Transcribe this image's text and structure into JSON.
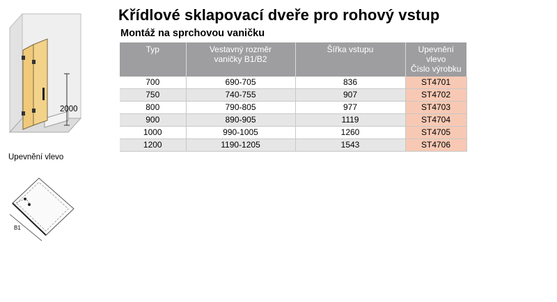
{
  "title": "Křídlové sklapovací dveře pro rohový vstup",
  "subtitle": "Montáž na sprchovou vaničku",
  "table": {
    "headers": [
      [
        "Typ"
      ],
      [
        "Vestavný rozměr",
        "vaničky B1/B2"
      ],
      [
        "Šířka vstupu"
      ],
      [
        "Upevnění",
        "vlevo",
        "Číslo výrobku"
      ]
    ],
    "rows": [
      {
        "typ": "700",
        "rozmer": "690-705",
        "sirka": "836",
        "cislo": "ST4701"
      },
      {
        "typ": "750",
        "rozmer": "740-755",
        "sirka": "907",
        "cislo": "ST4702"
      },
      {
        "typ": "800",
        "rozmer": "790-805",
        "sirka": "977",
        "cislo": "ST4703"
      },
      {
        "typ": "900",
        "rozmer": "890-905",
        "sirka": "1119",
        "cislo": "ST4704"
      },
      {
        "typ": "1000",
        "rozmer": "990-1005",
        "sirka": "1260",
        "cislo": "ST4705"
      },
      {
        "typ": "1200",
        "rozmer": "1190-1205",
        "sirka": "1543",
        "cislo": "ST4706"
      }
    ]
  },
  "illustration": {
    "height_label": "2000",
    "mount_label": "Upevnění vlevo",
    "plan_label": "B1",
    "door_color": "#f0c97a",
    "code_cell_color": "#f7c9b4",
    "header_color": "#9e9ea0"
  }
}
